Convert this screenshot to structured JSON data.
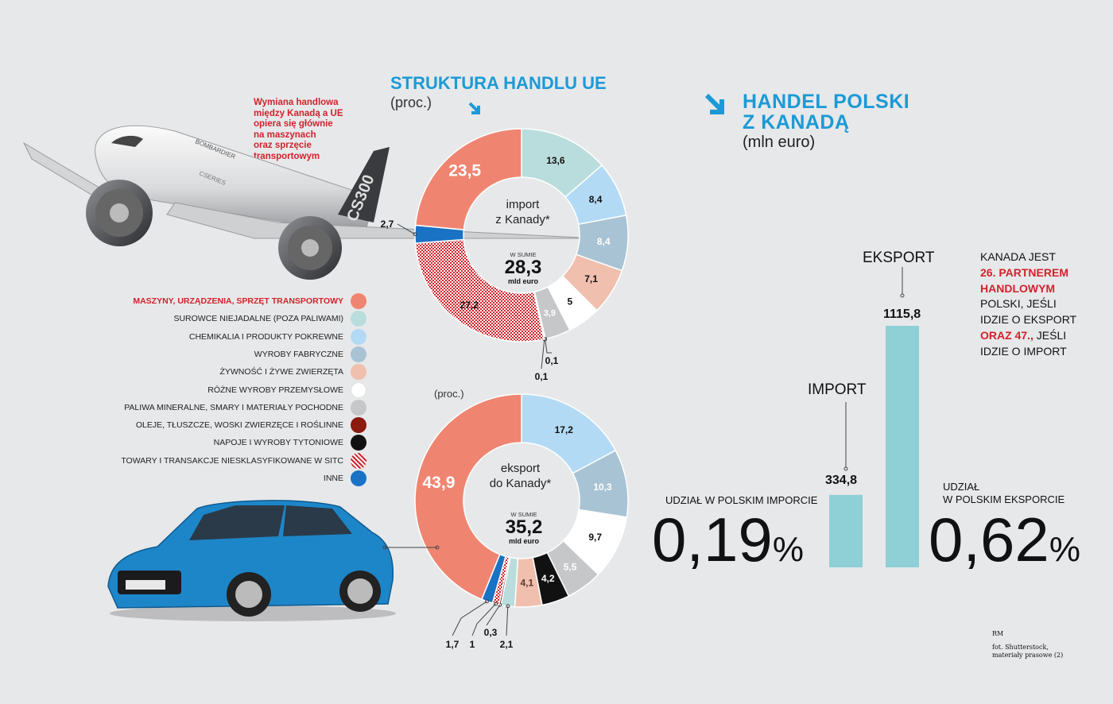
{
  "colors": {
    "machinery": "#ef8571",
    "raw": "#b9dddc",
    "chem": "#b3daf4",
    "manuf": "#a8c3d4",
    "food": "#f0bfae",
    "misc": "#ffffff",
    "fuels": "#c6c7c9",
    "oils": "#8b1a0f",
    "bev": "#111111",
    "unclass": "#d2222b",
    "other": "#1a72c4",
    "bars": "#8fcfd6",
    "accent": "#1b9ad6"
  },
  "struktura": {
    "title": "STRUKTURA HANDLU UE",
    "unit": "(proc.)"
  },
  "handel": {
    "title_1": "HANDEL POLSKI",
    "title_2": "Z KANADĄ",
    "unit": "(mln euro)"
  },
  "intro": {
    "text_1": "Wymiana handlowa",
    "text_2": "między Kanadą a UE",
    "text_3": "opiera się głównie",
    "text_4": "na maszynach",
    "text_5": "oraz sprzęcie",
    "text_6": "transportowym"
  },
  "legend": [
    {
      "label": "MASZYNY, URZĄDZENIA, SPRZĘT TRANSPORTOWY",
      "key": "machinery"
    },
    {
      "label": "SUROWCE NIEJADALNE (POZA PALIWAMI)",
      "key": "raw"
    },
    {
      "label": "CHEMIKALIA I PRODUKTY POKREWNE",
      "key": "chem"
    },
    {
      "label": "WYROBY FABRYCZNE",
      "key": "manuf"
    },
    {
      "label": "ŻYWNOŚĆ I ŻYWE ZWIERZĘTA",
      "key": "food"
    },
    {
      "label": "RÓŻNE WYROBY PRZEMYSŁOWE",
      "key": "misc"
    },
    {
      "label": "PALIWA MINERALNE, SMARY I MATERIAŁY POCHODNE",
      "key": "fuels"
    },
    {
      "label": "OLEJE, TŁUSZCZE, WOSKI ZWIERZĘCE I ROŚLINNE",
      "key": "oils"
    },
    {
      "label": "NAPOJE I WYROBY TYTONIOWE",
      "key": "bev"
    },
    {
      "label": "TOWARY I TRANSAKCJE NIESKLASYFIKOWANE W SITC",
      "key": "unclass"
    },
    {
      "label": "INNE",
      "key": "other"
    }
  ],
  "chart_data": [
    {
      "type": "pie",
      "center_1": "import",
      "center_2": "z Kanady*",
      "total_caption": "W SUMIE",
      "total": "28,3",
      "total_unit": "mld euro",
      "slices": [
        {
          "key": "raw",
          "value": 13.6,
          "label": "13,6"
        },
        {
          "key": "chem",
          "value": 8.4,
          "label": "8,4"
        },
        {
          "key": "manuf",
          "value": 8.4,
          "label": "8,4"
        },
        {
          "key": "food",
          "value": 7.1,
          "label": "7,1"
        },
        {
          "key": "misc",
          "value": 5.0,
          "label": "5"
        },
        {
          "key": "fuels",
          "value": 3.9,
          "label": "3,9"
        },
        {
          "key": "oils",
          "value": 0.1,
          "label": "0,1"
        },
        {
          "key": "bev",
          "value": 0.1,
          "label": "0,1"
        },
        {
          "key": "unclass",
          "value": 27.2,
          "label": "27,2"
        },
        {
          "key": "other",
          "value": 2.7,
          "label": "2,7"
        },
        {
          "key": "machinery",
          "value": 23.5,
          "label": "23,5"
        }
      ]
    },
    {
      "type": "pie",
      "unit": "(proc.)",
      "center_1": "eksport",
      "center_2": "do Kanady*",
      "total_caption": "W SUMIE",
      "total": "35,2",
      "total_unit": "mld euro",
      "slices": [
        {
          "key": "chem",
          "value": 17.2,
          "label": "17,2"
        },
        {
          "key": "manuf",
          "value": 10.3,
          "label": "10,3"
        },
        {
          "key": "misc",
          "value": 9.7,
          "label": "9,7"
        },
        {
          "key": "fuels",
          "value": 5.5,
          "label": "5,5"
        },
        {
          "key": "bev",
          "value": 4.2,
          "label": "4,2"
        },
        {
          "key": "food",
          "value": 4.1,
          "label": "4,1"
        },
        {
          "key": "raw",
          "value": 2.1,
          "label": "2,1"
        },
        {
          "key": "oils",
          "value": 0.3,
          "label": "0,3"
        },
        {
          "key": "unclass",
          "value": 1.0,
          "label": "1"
        },
        {
          "key": "other",
          "value": 1.7,
          "label": "1,7"
        },
        {
          "key": "machinery",
          "value": 43.9,
          "label": "43,9"
        }
      ]
    },
    {
      "type": "bar",
      "categories": [
        "IMPORT",
        "EKSPORT"
      ],
      "values": [
        334.8,
        1115.8
      ],
      "value_labels": [
        "334,8",
        "1115,8"
      ]
    }
  ],
  "shares": {
    "import_caption": "UDZIAŁ W POLSKIM IMPORCIE",
    "import_value": "0,19",
    "import_pct": "%",
    "export_caption_1": "UDZIAŁ",
    "export_caption_2": "W POLSKIM EKSPORCIE",
    "export_value": "0,62",
    "export_pct": "%"
  },
  "note": {
    "line_1": "KANADA JEST",
    "line_2": "26. PARTNEREM",
    "line_3": "HANDLOWYM",
    "line_4": "POLSKI, JEŚLI",
    "line_5": "IDZIE O EKSPORT",
    "line_6a": "ORAZ 47.,",
    "line_6b": " JEŚLI",
    "line_7": "IDZIE O IMPORT"
  },
  "credits": {
    "author": "RM",
    "photo_1": "fot. Shutterstock,",
    "photo_2": "materiały prasowe (2)"
  },
  "plane_text": {
    "brand": "BOMBARDIER",
    "series": "CSERIES",
    "model": "CS300"
  }
}
